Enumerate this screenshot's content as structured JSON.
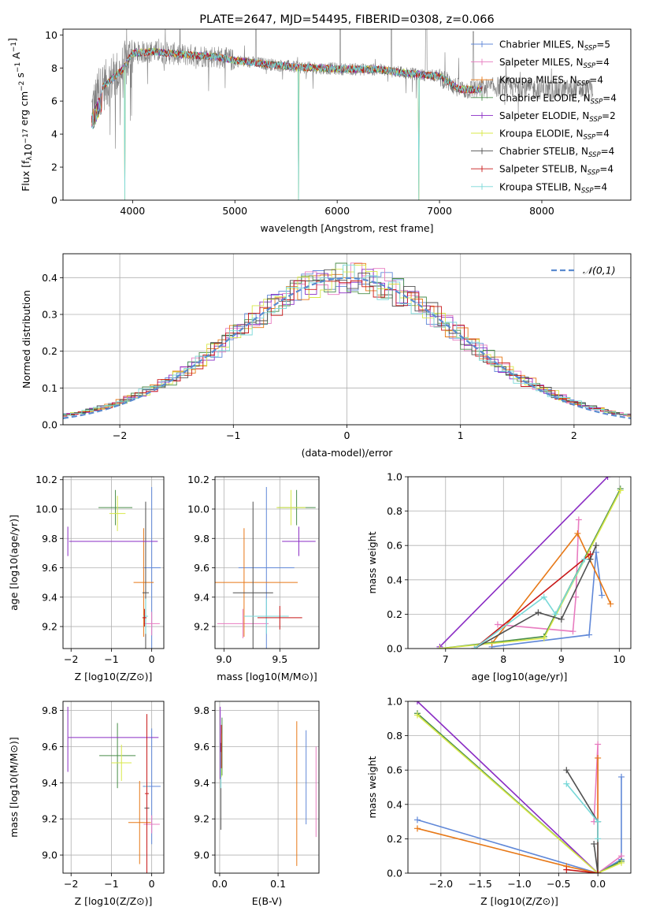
{
  "chart_data": [
    {
      "id": "spectrum",
      "type": "line",
      "title": "PLATE=2647, MJD=54495, FIBERID=0308, z=0.066",
      "xlabel": "wavelength [Angstrom, rest frame]",
      "ylabel": "Flux [f_λ 10^-17 erg cm^-2 s^-1 A^-1]",
      "xlim": [
        3320,
        8870
      ],
      "ylim": [
        0,
        10.35
      ],
      "xticks": [
        4000,
        5000,
        6000,
        7000,
        8000
      ],
      "yticks": [
        0,
        2,
        4,
        6,
        8,
        10
      ],
      "data_color": "#808080",
      "data_range": [
        3600,
        8500
      ],
      "continuum": {
        "x": [
          3600,
          3700,
          3900,
          4000,
          4200,
          4500,
          4800,
          5000,
          5300,
          5600,
          6000,
          6400,
          6800,
          7000,
          7200,
          7400,
          7600,
          8000,
          8500
        ],
        "y": [
          5.5,
          6.8,
          7.9,
          8.9,
          9.0,
          8.8,
          8.7,
          8.45,
          8.25,
          8.05,
          7.95,
          7.9,
          7.6,
          7.5,
          6.7,
          6.7,
          6.9,
          6.7,
          6.7
        ]
      },
      "model_end": 7420,
      "dips": [
        {
          "x": 3925,
          "y": 0
        },
        {
          "x": 5620,
          "y": 0
        },
        {
          "x": 6800,
          "y": 0
        },
        {
          "x": 7425,
          "y": 0
        }
      ],
      "legend_placement": "right",
      "legend": [
        "Chabrier MILES, N_SSP=5",
        "Salpeter MILES, N_SSP=4",
        "Kroupa MILES, N_SSP=4",
        "Chabrier ELODIE, N_SSP=4",
        "Salpeter ELODIE, N_SSP=2",
        "Kroupa ELODIE, N_SSP=4",
        "Chabrier STELIB, N_SSP=4",
        "Salpeter STELIB, N_SSP=4",
        "Kroupa STELIB, N_SSP=4"
      ],
      "grid": false
    },
    {
      "id": "residuals",
      "type": "line",
      "xlabel": "(data-model)/error",
      "ylabel": "Normed distribution",
      "xlim": [
        -2.5,
        2.5
      ],
      "ylim": [
        0,
        0.465
      ],
      "xticks": [
        -2,
        -1,
        0,
        1,
        2
      ],
      "yticks": [
        0.0,
        0.1,
        0.2,
        0.3,
        0.4
      ],
      "grid": true,
      "legend": [
        "𝒩(0,1)"
      ],
      "legend_placement": "top-right",
      "bin_width": 0.1,
      "gaussian": {
        "mean": 0,
        "sigma": 1
      }
    },
    {
      "id": "age-vs-Z",
      "type": "scatter",
      "xlabel": "Z [log10(Z/Z⊙)]",
      "ylabel": "age [log10(age/yr)]",
      "xlim": [
        -2.2,
        0.3
      ],
      "ylim": [
        9.05,
        10.22
      ],
      "xticks": [
        -2,
        -1,
        0
      ],
      "yticks": [
        9.2,
        9.4,
        9.6,
        9.8,
        10.0,
        10.2
      ],
      "grid": true,
      "points": [
        {
          "x": 0.0,
          "y": 9.6,
          "xerr": 0.22,
          "yerr": 0.55,
          "series": 0
        },
        {
          "x": 0.0,
          "y": 9.22,
          "xerr": 0.2,
          "yerr": 0.08,
          "series": 1
        },
        {
          "x": -0.2,
          "y": 9.5,
          "xerr": 0.25,
          "yerr": 0.37,
          "series": 2
        },
        {
          "x": -0.15,
          "y": 9.43,
          "xerr": 0.08,
          "yerr": 0.62,
          "series": 6
        },
        {
          "x": -0.9,
          "y": 10.01,
          "xerr": 0.42,
          "yerr": 0.12,
          "series": 3
        },
        {
          "x": -0.85,
          "y": 9.97,
          "xerr": 0.2,
          "yerr": 0.12,
          "series": 5
        },
        {
          "x": -2.08,
          "y": 9.78,
          "xerr": 0.0,
          "yerr": 0.1,
          "series": 4
        },
        {
          "x": -0.95,
          "y": 9.78,
          "xerr": 1.1,
          "yerr": 0.0,
          "series": 4
        },
        {
          "x": -0.15,
          "y": 9.27,
          "xerr": 0.06,
          "yerr": 0.12,
          "series": 8
        },
        {
          "x": -0.18,
          "y": 9.26,
          "xerr": 0.05,
          "yerr": 0.06,
          "series": 7
        }
      ]
    },
    {
      "id": "age-vs-mass",
      "type": "scatter",
      "xlabel": "mass [log10(M/M⊙)]",
      "ylabel": "",
      "xlim": [
        8.92,
        9.85
      ],
      "ylim": [
        9.05,
        10.22
      ],
      "xticks": [
        9.0,
        9.5
      ],
      "yticks": [
        9.2,
        9.4,
        9.6,
        9.8,
        10.0,
        10.2
      ],
      "grid": true,
      "points": [
        {
          "x": 9.38,
          "y": 9.6,
          "xerr": 0.25,
          "yerr": 0.55,
          "series": 0
        },
        {
          "x": 9.17,
          "y": 9.22,
          "xerr": 0.23,
          "yerr": 0.1,
          "series": 1
        },
        {
          "x": 9.18,
          "y": 9.5,
          "xerr": 0.48,
          "yerr": 0.37,
          "series": 2
        },
        {
          "x": 9.26,
          "y": 9.43,
          "xerr": 0.18,
          "yerr": 0.62,
          "series": 6
        },
        {
          "x": 9.65,
          "y": 10.01,
          "xerr": 0.17,
          "yerr": 0.12,
          "series": 3
        },
        {
          "x": 9.6,
          "y": 10.01,
          "xerr": 0.13,
          "yerr": 0.12,
          "series": 5
        },
        {
          "x": 9.67,
          "y": 9.78,
          "xerr": 0.15,
          "yerr": 0.1,
          "series": 4
        },
        {
          "x": 9.38,
          "y": 9.27,
          "xerr": 0.2,
          "yerr": 0.12,
          "series": 8
        },
        {
          "x": 9.5,
          "y": 9.26,
          "xerr": 0.2,
          "yerr": 0.08,
          "series": 7
        }
      ]
    },
    {
      "id": "weight-vs-age",
      "type": "line",
      "xlabel": "age [log10(age/yr)]",
      "ylabel": "mass weight",
      "xlim": [
        6.35,
        10.2
      ],
      "ylim": [
        0,
        1.0
      ],
      "xticks": [
        7,
        8,
        9,
        10
      ],
      "yticks": [
        0.0,
        0.2,
        0.4,
        0.6,
        0.8,
        1.0
      ],
      "grid": true,
      "series": [
        {
          "color_index": 0,
          "x": [
            7.8,
            9.48,
            9.6,
            9.7
          ],
          "y": [
            0.01,
            0.08,
            0.56,
            0.31
          ]
        },
        {
          "color_index": 1,
          "x": [
            7.9,
            9.2,
            9.25,
            9.3
          ],
          "y": [
            0.14,
            0.1,
            0.3,
            0.75
          ]
        },
        {
          "color_index": 2,
          "x": [
            7.8,
            9.28,
            9.85
          ],
          "y": [
            0.03,
            0.67,
            0.26
          ]
        },
        {
          "color_index": 3,
          "x": [
            6.9,
            8.7,
            10.02
          ],
          "y": [
            0.0,
            0.07,
            0.93
          ]
        },
        {
          "color_index": 4,
          "x": [
            6.9,
            9.8
          ],
          "y": [
            0.01,
            1.0
          ]
        },
        {
          "color_index": 5,
          "x": [
            6.9,
            8.7,
            10.02
          ],
          "y": [
            0.0,
            0.06,
            0.92
          ]
        },
        {
          "color_index": 6,
          "x": [
            7.5,
            8.6,
            9.0,
            9.5,
            9.6
          ],
          "y": [
            0.0,
            0.21,
            0.17,
            0.52,
            0.6
          ]
        },
        {
          "color_index": 7,
          "x": [
            7.5,
            9.5
          ],
          "y": [
            0.0,
            0.55
          ]
        },
        {
          "color_index": 8,
          "x": [
            7.5,
            8.7,
            8.9,
            9.4
          ],
          "y": [
            0.0,
            0.3,
            0.2,
            0.52
          ]
        }
      ]
    },
    {
      "id": "mass-vs-Z",
      "type": "scatter",
      "xlabel": "Z [log10(Z/Z⊙)]",
      "ylabel": "mass [log10(M/M⊙)]",
      "xlim": [
        -2.2,
        0.3
      ],
      "ylim": [
        8.9,
        9.85
      ],
      "xticks": [
        -2,
        -1,
        0
      ],
      "yticks": [
        9.0,
        9.2,
        9.4,
        9.6,
        9.8
      ],
      "grid": true,
      "points": [
        {
          "x": 0.0,
          "y": 9.38,
          "xerr": 0.22,
          "yerr": 0.32,
          "series": 0
        },
        {
          "x": 0.0,
          "y": 9.17,
          "xerr": 0.2,
          "yerr": 0.05,
          "series": 1
        },
        {
          "x": -0.3,
          "y": 9.18,
          "xerr": 0.28,
          "yerr": 0.23,
          "series": 2
        },
        {
          "x": -0.12,
          "y": 9.26,
          "xerr": 0.06,
          "yerr": 0.22,
          "series": 6
        },
        {
          "x": -0.85,
          "y": 9.55,
          "xerr": 0.45,
          "yerr": 0.18,
          "series": 3
        },
        {
          "x": -0.75,
          "y": 9.51,
          "xerr": 0.25,
          "yerr": 0.1,
          "series": 5
        },
        {
          "x": -2.08,
          "y": 9.64,
          "xerr": 0.0,
          "yerr": 0.18,
          "series": 4
        },
        {
          "x": -0.95,
          "y": 9.65,
          "xerr": 1.12,
          "yerr": 0.0,
          "series": 4
        },
        {
          "x": -0.12,
          "y": 9.38,
          "xerr": 0.04,
          "yerr": 0.2,
          "series": 8
        },
        {
          "x": -0.12,
          "y": 9.34,
          "xerr": 0.05,
          "yerr": 0.44,
          "series": 7
        }
      ]
    },
    {
      "id": "mass-vs-ebv",
      "type": "scatter",
      "xlabel": "E(B-V)",
      "ylabel": "",
      "xlim": [
        -0.008,
        0.17
      ],
      "ylim": [
        8.9,
        9.85
      ],
      "xticks": [
        0.0,
        0.1
      ],
      "yticks": [
        9.0,
        9.2,
        9.4,
        9.6,
        9.8
      ],
      "grid": true,
      "points": [
        {
          "x": 0.148,
          "y": 9.43,
          "xerr": 0.0,
          "yerr": 0.26,
          "series": 0
        },
        {
          "x": 0.165,
          "y": 9.35,
          "xerr": 0.0,
          "yerr": 0.25,
          "series": 1
        },
        {
          "x": 0.132,
          "y": 9.34,
          "xerr": 0.0,
          "yerr": 0.4,
          "series": 2
        },
        {
          "x": 0.002,
          "y": 9.38,
          "xerr": 0.0,
          "yerr": 0.24,
          "series": 6
        },
        {
          "x": 0.004,
          "y": 9.6,
          "xerr": 0.0,
          "yerr": 0.16,
          "series": 3
        },
        {
          "x": 0.001,
          "y": 9.62,
          "xerr": 0.0,
          "yerr": 0.2,
          "series": 4
        },
        {
          "x": 0.003,
          "y": 9.55,
          "xerr": 0.0,
          "yerr": 0.12,
          "series": 5
        },
        {
          "x": 0.002,
          "y": 9.47,
          "xerr": 0.0,
          "yerr": 0.1,
          "series": 8
        },
        {
          "x": 0.003,
          "y": 9.6,
          "xerr": 0.0,
          "yerr": 0.12,
          "series": 7
        }
      ]
    },
    {
      "id": "weight-vs-Z",
      "type": "line",
      "xlabel": "Z [log10(Z/Z⊙)]",
      "ylabel": "mass weight",
      "xlim": [
        -2.42,
        0.42
      ],
      "ylim": [
        0,
        1.0
      ],
      "xticks": [
        -2.0,
        -1.5,
        -1.0,
        -0.5,
        0.0
      ],
      "yticks": [
        0.0,
        0.2,
        0.4,
        0.6,
        0.8,
        1.0
      ],
      "grid": true,
      "series": [
        {
          "color_index": 0,
          "x": [
            -2.3,
            0.0,
            0.3,
            0.3
          ],
          "y": [
            0.31,
            0.0,
            0.08,
            0.56
          ]
        },
        {
          "color_index": 1,
          "x": [
            0.3,
            0.0,
            0.0,
            -0.05
          ],
          "y": [
            0.1,
            0.0,
            0.75,
            0.3
          ]
        },
        {
          "color_index": 2,
          "x": [
            -2.3,
            -0.4,
            0.0,
            0.0
          ],
          "y": [
            0.26,
            0.04,
            0.0,
            0.67
          ]
        },
        {
          "color_index": 3,
          "x": [
            -2.3,
            0.0,
            0.3
          ],
          "y": [
            0.93,
            0.0,
            0.07
          ]
        },
        {
          "color_index": 4,
          "x": [
            -2.3,
            0.0
          ],
          "y": [
            1.0,
            0.0
          ]
        },
        {
          "color_index": 5,
          "x": [
            -2.3,
            0.0,
            0.3
          ],
          "y": [
            0.92,
            0.0,
            0.06
          ]
        },
        {
          "color_index": 6,
          "x": [
            -0.4,
            0.0,
            0.0,
            -0.05
          ],
          "y": [
            0.6,
            0.3,
            0.0,
            0.17
          ]
        },
        {
          "color_index": 7,
          "x": [
            -0.4,
            0.0
          ],
          "y": [
            0.02,
            0.0
          ]
        },
        {
          "color_index": 8,
          "x": [
            -0.4,
            0.0,
            0.0
          ],
          "y": [
            0.52,
            0.3,
            0.2
          ]
        }
      ]
    }
  ],
  "series_colors": [
    "#6088d8",
    "#e87cc0",
    "#e77817",
    "#4a8e4a",
    "#8a2cc4",
    "#d8e848",
    "#505050",
    "#c81818",
    "#78d8d8"
  ],
  "legend_texts": {
    "spectrum": [
      {
        "a": "Chabrier MILES, N",
        "sub": "SSP",
        "b": "=5"
      },
      {
        "a": "Salpeter MILES, N",
        "sub": "SSP",
        "b": "=4"
      },
      {
        "a": "Kroupa MILES, N",
        "sub": "SSP",
        "b": "=4"
      },
      {
        "a": "Chabrier ELODIE, N",
        "sub": "SSP",
        "b": "=4"
      },
      {
        "a": "Salpeter ELODIE, N",
        "sub": "SSP",
        "b": "=2"
      },
      {
        "a": "Kroupa ELODIE, N",
        "sub": "SSP",
        "b": "=4"
      },
      {
        "a": "Chabrier STELIB, N",
        "sub": "SSP",
        "b": "=4"
      },
      {
        "a": "Salpeter STELIB, N",
        "sub": "SSP",
        "b": "=4"
      },
      {
        "a": "Kroupa STELIB, N",
        "sub": "SSP",
        "b": "=4"
      }
    ]
  }
}
